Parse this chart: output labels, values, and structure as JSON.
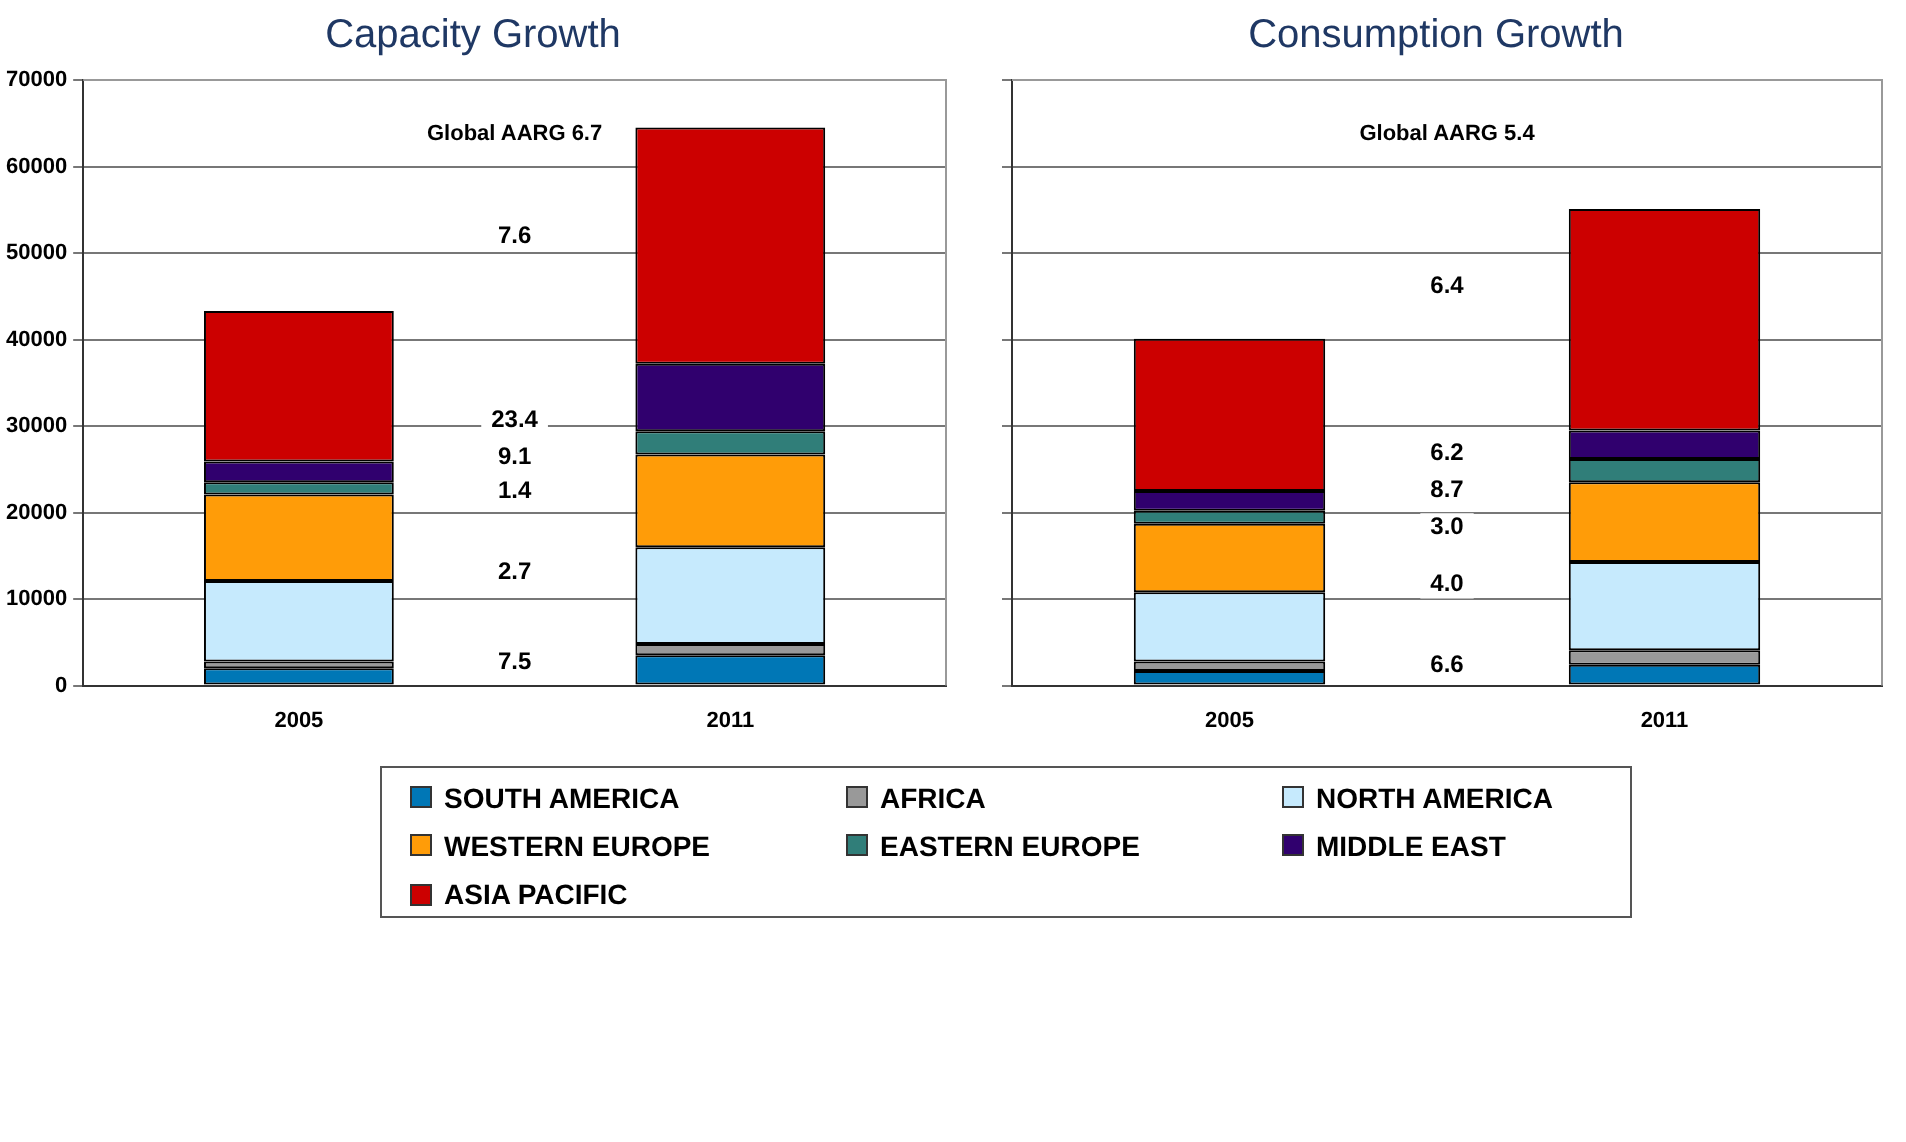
{
  "chart_data": [
    {
      "type": "bar",
      "title": "Capacity Growth",
      "stacked": true,
      "categories": [
        "2005",
        "2011"
      ],
      "series": [
        {
          "name": "SOUTH AMERICA",
          "color": "#0077b6",
          "values": [
            2000,
            3500
          ]
        },
        {
          "name": "AFRICA",
          "color": "#999999",
          "values": [
            800,
            1300
          ]
        },
        {
          "name": "NORTH AMERICA",
          "color": "#c6eafd",
          "values": [
            9300,
            11200
          ]
        },
        {
          "name": "WESTERN EUROPE",
          "color": "#ff9c08",
          "values": [
            10000,
            10700
          ]
        },
        {
          "name": "EASTERN EUROPE",
          "color": "#307e79",
          "values": [
            1400,
            2700
          ]
        },
        {
          "name": "MIDDLE EAST",
          "color": "#30006e",
          "values": [
            2400,
            7800
          ]
        },
        {
          "name": "ASIA PACIFIC",
          "color": "#cc0000",
          "values": [
            17400,
            27300
          ]
        }
      ],
      "ylim": [
        0,
        70000
      ],
      "yticks": [
        0,
        10000,
        20000,
        30000,
        40000,
        50000,
        60000,
        70000
      ],
      "grid": "y",
      "legend": "bottom",
      "annotations": [
        "Global AARG 6.7",
        {
          "text": "7.6",
          "y": 51900
        },
        {
          "text": "23.4",
          "y": 30600
        },
        {
          "text": "9.1",
          "y": 26400
        },
        {
          "text": "1.4",
          "y": 22400
        },
        {
          "text": "2.7",
          "y": 13100
        },
        {
          "text": "7.5",
          "y": 2700
        }
      ]
    },
    {
      "type": "bar",
      "title": "Consumption Growth",
      "stacked": true,
      "categories": [
        "2005",
        "2011"
      ],
      "series": [
        {
          "name": "SOUTH AMERICA",
          "color": "#0077b6",
          "values": [
            1700,
            2400
          ]
        },
        {
          "name": "AFRICA",
          "color": "#999999",
          "values": [
            1100,
            1700
          ]
        },
        {
          "name": "NORTH AMERICA",
          "color": "#c6eafd",
          "values": [
            8000,
            10200
          ]
        },
        {
          "name": "WESTERN EUROPE",
          "color": "#ff9c08",
          "values": [
            7900,
            9200
          ]
        },
        {
          "name": "EASTERN EUROPE",
          "color": "#307e79",
          "values": [
            1500,
            2700
          ]
        },
        {
          "name": "MIDDLE EAST",
          "color": "#30006e",
          "values": [
            2300,
            3300
          ]
        },
        {
          "name": "ASIA PACIFIC",
          "color": "#cc0000",
          "values": [
            17600,
            25600
          ]
        }
      ],
      "ylim": [
        0,
        70000
      ],
      "yticks": [
        {
          "value": 0,
          "label": null
        },
        {
          "value": 10000,
          "label": null
        },
        {
          "value": 20000,
          "label": null
        },
        {
          "value": 30000,
          "label": null
        },
        {
          "value": 40000,
          "label": null
        },
        {
          "value": 50000,
          "label": null
        },
        {
          "value": 60000,
          "label": null
        },
        {
          "value": 70000,
          "label": null
        }
      ],
      "tick_labels": "x",
      "grid": "y",
      "legend": "bottom",
      "annotations": [
        "Global AARG 5.4",
        {
          "text": "6.4",
          "y": 46200
        },
        {
          "text": "6.2",
          "y": 26800
        },
        {
          "text": "8.7",
          "y": 22600
        },
        {
          "text": "3.0",
          "y": 18300
        },
        {
          "text": "4.0",
          "y": 11700
        },
        {
          "text": "6.6",
          "y": 2300
        }
      ]
    }
  ]
}
